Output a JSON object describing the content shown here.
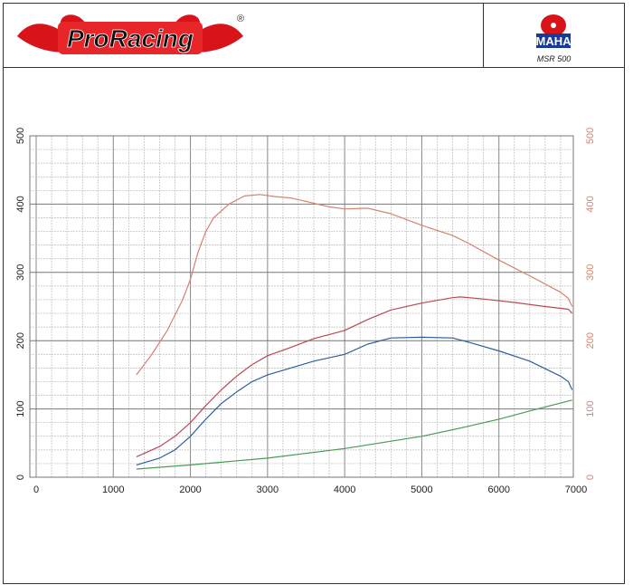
{
  "header": {
    "brand": "ProRacing",
    "registered": "®",
    "dyno_brand": "MAHA",
    "dyno_model": "MSR 500"
  },
  "chart_data": {
    "type": "line",
    "title": "",
    "xlabel": "",
    "ylabel": "",
    "y2label": "",
    "xlim": [
      0,
      7000
    ],
    "ylim": [
      0,
      500
    ],
    "y2lim": [
      0,
      500
    ],
    "xticks": [
      0,
      1000,
      2000,
      3000,
      4000,
      5000,
      6000,
      7000
    ],
    "yticks": [
      0,
      100,
      200,
      300,
      400,
      500
    ],
    "y2ticks": [
      0,
      100,
      200,
      300,
      400,
      500
    ],
    "grid": true,
    "colors": {
      "y2_tick": "#d9826a"
    },
    "series": [
      {
        "color": "#d4826e",
        "x": [
          1300,
          1500,
          1700,
          1900,
          2000,
          2100,
          2200,
          2300,
          2500,
          2700,
          2900,
          3100,
          3300,
          3500,
          3800,
          4000,
          4300,
          4600,
          5000,
          5400,
          5600,
          6000,
          6400,
          6800,
          6900,
          6950
        ],
        "y": [
          150,
          180,
          215,
          260,
          290,
          330,
          360,
          380,
          400,
          412,
          414,
          411,
          409,
          404,
          396,
          393,
          394,
          386,
          369,
          354,
          343,
          318,
          295,
          271,
          262,
          250
        ]
      },
      {
        "color": "#b84a55",
        "x": [
          1300,
          1600,
          1800,
          2000,
          2200,
          2400,
          2600,
          2800,
          3000,
          3300,
          3600,
          4000,
          4300,
          4600,
          5000,
          5400,
          5500,
          5800,
          6200,
          6600,
          6900,
          6950
        ],
        "y": [
          30,
          45,
          60,
          80,
          105,
          128,
          148,
          165,
          178,
          190,
          203,
          215,
          231,
          245,
          255,
          263,
          264,
          261,
          256,
          250,
          246,
          240
        ]
      },
      {
        "color": "#2f5f9a",
        "x": [
          1300,
          1600,
          1800,
          2000,
          2200,
          2400,
          2600,
          2800,
          3000,
          3300,
          3600,
          4000,
          4300,
          4600,
          5000,
          5400,
          5600,
          6000,
          6400,
          6800,
          6900,
          6950
        ],
        "y": [
          18,
          28,
          40,
          60,
          85,
          108,
          125,
          140,
          150,
          160,
          170,
          180,
          195,
          204,
          205,
          204,
          198,
          185,
          170,
          148,
          140,
          128
        ]
      },
      {
        "color": "#4a9a55",
        "x": [
          1300,
          2000,
          3000,
          4000,
          5000,
          5500,
          6000,
          6500,
          6950
        ],
        "y": [
          12,
          18,
          28,
          42,
          60,
          72,
          85,
          100,
          113
        ]
      }
    ]
  }
}
